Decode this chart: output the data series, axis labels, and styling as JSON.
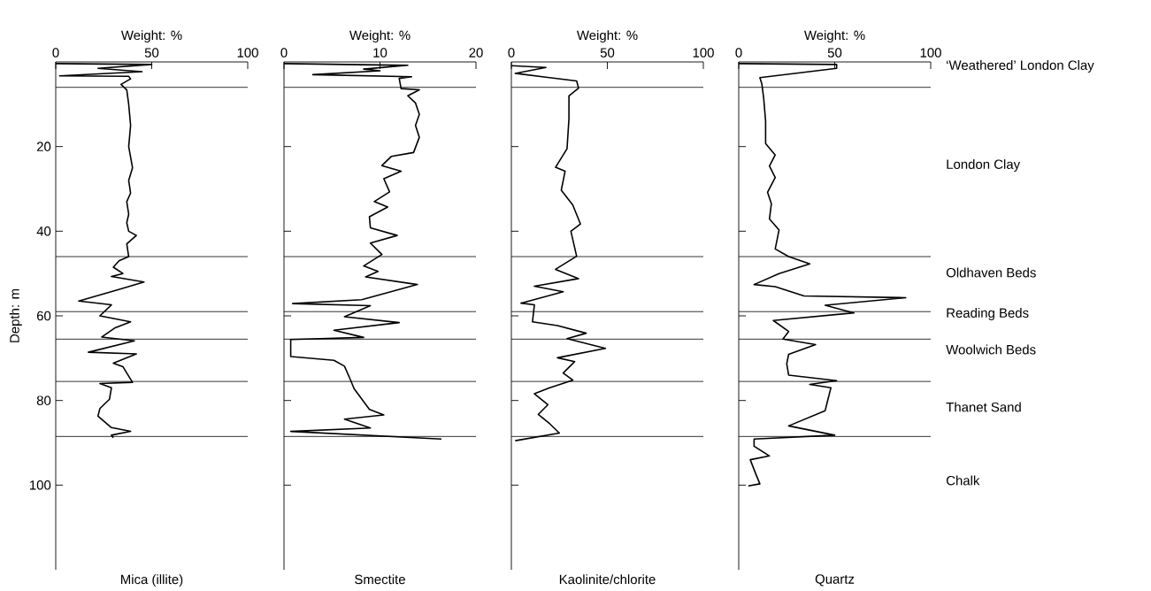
{
  "chart_data": [
    {
      "type": "line",
      "title": "Mica (illite)",
      "xlabel": "Weight: %",
      "ylabel": "Depth: m",
      "xlim": [
        0,
        100
      ],
      "ylim": [
        120,
        0
      ],
      "xticks": [
        0,
        50,
        100
      ],
      "yticks": [
        20,
        40,
        60,
        80,
        100
      ],
      "series": [
        {
          "color": "#000000",
          "x": [
            0,
            50,
            22,
            45,
            2,
            38,
            39,
            34,
            37,
            38,
            39,
            38,
            40,
            38,
            39,
            37,
            38,
            37,
            38,
            42,
            37,
            38,
            33,
            30,
            35,
            29,
            46,
            32,
            12,
            29,
            23,
            39,
            31,
            24,
            41,
            17,
            42,
            30,
            35,
            37,
            40,
            23,
            29,
            28,
            23,
            22,
            29,
            39,
            29,
            30
          ],
          "values": [
            0.4,
            0.6,
            1.5,
            2.3,
            3.3,
            3.4,
            4,
            5.3,
            6.6,
            10,
            15,
            20,
            25,
            28,
            31,
            33,
            36,
            38,
            40,
            41,
            43,
            46,
            47,
            48.5,
            50,
            50.7,
            52,
            53.9,
            56.5,
            57.4,
            60,
            61.4,
            62.8,
            65,
            65.9,
            68.6,
            69,
            71.2,
            72,
            73.5,
            75.7,
            76,
            77,
            79.7,
            81.9,
            83.7,
            86.4,
            87.3,
            88.2,
            88.8
          ]
        }
      ],
      "ref_lines": [
        {
          "axis": "y",
          "value": 6,
          "color": "#000000"
        },
        {
          "axis": "y",
          "value": 46,
          "color": "#000000"
        },
        {
          "axis": "y",
          "value": 59,
          "color": "#000000"
        },
        {
          "axis": "y",
          "value": 65.5,
          "color": "#000000"
        },
        {
          "axis": "y",
          "value": 75.5,
          "color": "#000000"
        },
        {
          "axis": "y",
          "value": 88.5,
          "color": "#000000"
        }
      ]
    },
    {
      "type": "line",
      "title": "Smectite",
      "xlabel": "Weight: %",
      "xlim": [
        0,
        20
      ],
      "ylim": [
        120,
        0
      ],
      "xticks": [
        0,
        10,
        20
      ],
      "yticks": [
        20,
        40,
        60,
        80,
        100
      ],
      "tick_labels": "x",
      "series": [
        {
          "color": "#000000",
          "x": [
            0,
            12.9,
            8.3,
            10,
            3,
            13.3,
            12,
            12.2,
            14.1,
            12.9,
            13.7,
            14.1,
            13.7,
            14.1,
            13.5,
            11.2,
            10.2,
            12.2,
            10.4,
            11,
            9.4,
            10.8,
            8.9,
            9,
            11.8,
            9,
            10.2,
            8.3,
            9.8,
            8.5,
            13.9,
            8.1,
            0.9,
            9,
            6.3,
            12,
            5.2,
            8.3,
            0.7,
            0.7,
            5.2,
            6.3,
            6.9,
            7.3,
            8.9,
            10.4,
            6.3,
            9,
            0.7,
            16.4
          ],
          "values": [
            0.4,
            0.8,
            1.7,
            2.1,
            3,
            3.5,
            3.9,
            6.3,
            6.6,
            8,
            9.7,
            12.4,
            15,
            17.8,
            21.4,
            22.3,
            24.5,
            25.8,
            27.6,
            30.7,
            33,
            34.3,
            36.6,
            39.2,
            41,
            42.8,
            45.5,
            48.2,
            49.5,
            50.8,
            52.6,
            56.2,
            57.1,
            57.6,
            60.2,
            61.6,
            63.4,
            65.1,
            65.6,
            69.6,
            70.5,
            71.9,
            75,
            77.2,
            82.1,
            83.4,
            84.4,
            86.5,
            87.3,
            89.1
          ]
        }
      ],
      "ref_lines": [
        {
          "axis": "y",
          "value": 6,
          "color": "#000000"
        },
        {
          "axis": "y",
          "value": 46,
          "color": "#000000"
        },
        {
          "axis": "y",
          "value": 59,
          "color": "#000000"
        },
        {
          "axis": "y",
          "value": 65.5,
          "color": "#000000"
        },
        {
          "axis": "y",
          "value": 75.5,
          "color": "#000000"
        },
        {
          "axis": "y",
          "value": 88.5,
          "color": "#000000"
        }
      ]
    },
    {
      "type": "line",
      "title": "Kaolinite/chlorite",
      "xlabel": "Weight: %",
      "xlim": [
        0,
        100
      ],
      "ylim": [
        120,
        0
      ],
      "xticks": [
        0,
        50,
        100
      ],
      "yticks": [
        20,
        40,
        60,
        80,
        100
      ],
      "tick_labels": "x",
      "series": [
        {
          "color": "#000000",
          "x": [
            0,
            18,
            2,
            18,
            34,
            35,
            30,
            30,
            29,
            23,
            28,
            26,
            32,
            36,
            31,
            34,
            23,
            35,
            12,
            27,
            5,
            12,
            11,
            24,
            39,
            29,
            49,
            24,
            33,
            27,
            32,
            20,
            12,
            19,
            14,
            20,
            25,
            2
          ],
          "values": [
            0.9,
            1.3,
            2.7,
            3.6,
            4.5,
            6.2,
            8,
            13.4,
            20.5,
            24.9,
            25.8,
            30.3,
            33.8,
            38.3,
            40,
            45.9,
            49,
            51.2,
            53,
            54.3,
            57,
            57.4,
            61.4,
            62.3,
            64.1,
            65.4,
            67.7,
            69.9,
            70.8,
            73.5,
            75.2,
            77,
            78.4,
            81,
            83.3,
            85.5,
            87.7,
            89.5
          ]
        }
      ],
      "ref_lines": [
        {
          "axis": "y",
          "value": 6,
          "color": "#000000"
        },
        {
          "axis": "y",
          "value": 46,
          "color": "#000000"
        },
        {
          "axis": "y",
          "value": 59,
          "color": "#000000"
        },
        {
          "axis": "y",
          "value": 65.5,
          "color": "#000000"
        },
        {
          "axis": "y",
          "value": 75.5,
          "color": "#000000"
        },
        {
          "axis": "y",
          "value": 88.5,
          "color": "#000000"
        }
      ]
    },
    {
      "type": "line",
      "title": "Quartz",
      "xlabel": "Weight: %",
      "xlim": [
        0,
        100
      ],
      "ylim": [
        120,
        0
      ],
      "xticks": [
        0,
        50,
        100
      ],
      "yticks": [
        20,
        40,
        60,
        80,
        100
      ],
      "tick_labels": "x",
      "series": [
        {
          "color": "#000000",
          "x": [
            0,
            51,
            51,
            11,
            12,
            13,
            14,
            14,
            19,
            16,
            19,
            15,
            17,
            16,
            21,
            19,
            26,
            37,
            21,
            8,
            19,
            34,
            87,
            45,
            60,
            18,
            26,
            23,
            40,
            26,
            25,
            26,
            51,
            37,
            48,
            46,
            45,
            26,
            50,
            8,
            8,
            16,
            6,
            9,
            11,
            5
          ],
          "values": [
            0.4,
            0.6,
            1.5,
            3.7,
            5.1,
            8.6,
            14,
            19.3,
            22,
            24.6,
            27.3,
            30.8,
            33.5,
            37.1,
            39.7,
            44.2,
            46,
            47.7,
            50,
            52.6,
            53.1,
            55.3,
            55.7,
            57.5,
            59.3,
            61.1,
            63.7,
            65.5,
            66.8,
            69.1,
            71.3,
            74,
            75.3,
            76.2,
            77,
            80.6,
            82.4,
            86,
            88.2,
            89.1,
            90.8,
            93.1,
            94,
            97.5,
            99.7,
            100.2
          ]
        }
      ],
      "ref_lines": [
        {
          "axis": "y",
          "value": 6,
          "color": "#000000"
        },
        {
          "axis": "y",
          "value": 46,
          "color": "#000000"
        },
        {
          "axis": "y",
          "value": 59,
          "color": "#000000"
        },
        {
          "axis": "y",
          "value": 65.5,
          "color": "#000000"
        },
        {
          "axis": "y",
          "value": 75.5,
          "color": "#000000"
        },
        {
          "axis": "y",
          "value": 88.5,
          "color": "#000000"
        }
      ],
      "annotations": [
        "‘Weathered’ London Clay",
        "London Clay",
        "Oldhaven Beds",
        "Reading Beds",
        "Woolwich Beds",
        "Thanet Sand",
        "Chalk"
      ]
    }
  ]
}
